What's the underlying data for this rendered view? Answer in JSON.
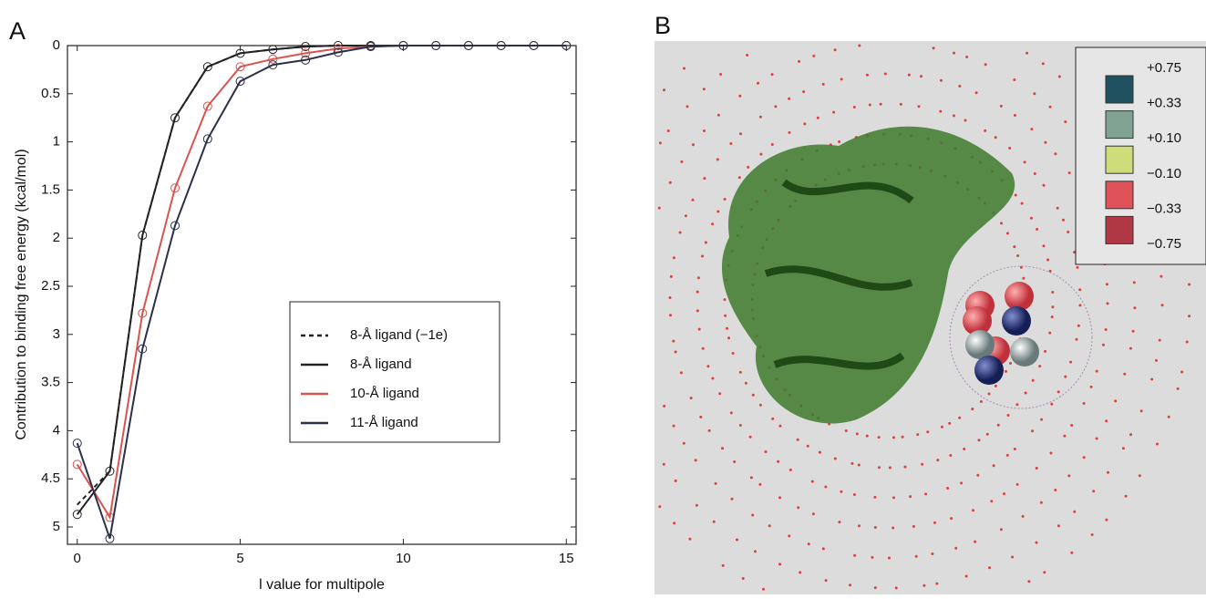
{
  "panel_labels": [
    "A",
    "B"
  ],
  "chart_data": {
    "type": "line",
    "x_label": "l value for multipole",
    "y_label": "Contribution to binding free energy (kcal/mol)",
    "x": [
      0,
      1,
      2,
      3,
      4,
      5,
      6,
      7,
      8,
      9,
      10,
      11,
      12,
      13,
      14,
      15
    ],
    "xlim": [
      -0.3,
      15.3
    ],
    "xticks": [
      0,
      5,
      10,
      15
    ],
    "ylim": [
      0,
      5.18
    ],
    "yticks": [
      0,
      0.5,
      1,
      1.5,
      2,
      2.5,
      3,
      3.5,
      4,
      4.5,
      5
    ],
    "y_inverted": true,
    "marker": "open-circle",
    "series": [
      {
        "name": "8-Å ligand (−1e)",
        "color": "#222222",
        "dash": true,
        "values": [
          4.77,
          4.42,
          1.97,
          0.75,
          0.22,
          0.08,
          0.04,
          0.01,
          0,
          0,
          0,
          0,
          0,
          0,
          0,
          0
        ]
      },
      {
        "name": "8-Å ligand",
        "color": "#222222",
        "dash": false,
        "values": [
          4.87,
          4.42,
          1.97,
          0.75,
          0.22,
          0.08,
          0.04,
          0.01,
          0,
          0,
          0,
          0,
          0,
          0,
          0,
          0
        ]
      },
      {
        "name": "10-Å ligand",
        "color": "#d9534f",
        "dash": false,
        "values": [
          4.35,
          4.9,
          2.78,
          1.48,
          0.63,
          0.22,
          0.14,
          0.08,
          0.03,
          0.01,
          0,
          0,
          0,
          0,
          0,
          0
        ]
      },
      {
        "name": "11-Å ligand",
        "color": "#2b2f4a",
        "dash": false,
        "values": [
          4.13,
          5.12,
          3.15,
          1.87,
          0.97,
          0.37,
          0.2,
          0.15,
          0.07,
          0.01,
          0,
          0,
          0,
          0,
          0,
          0
        ]
      }
    ]
  },
  "panel_b": {
    "legend_labels": [
      "+0.75",
      "+0.33",
      "+0.10",
      "−0.10",
      "−0.33",
      "−0.75"
    ],
    "legend_colors": [
      "#1f5160",
      "#7fa292",
      "#cfdc7a",
      "#e0525a",
      "#b03845"
    ]
  }
}
